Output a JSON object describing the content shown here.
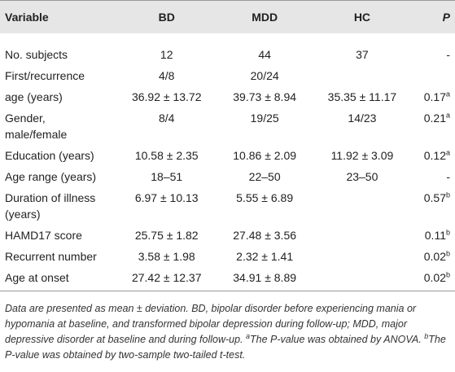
{
  "table": {
    "header": [
      "Variable",
      "BD",
      "MDD",
      "HC",
      "P"
    ],
    "rows": [
      [
        "No. subjects",
        "12",
        "44",
        "37",
        {
          "text": "-"
        }
      ],
      [
        "First/recurrence",
        "4/8",
        "20/24",
        null,
        null
      ],
      [
        "age (years)",
        "36.92 ± 13.72",
        "39.73 ± 8.94",
        "35.35 ± 11.17",
        {
          "text": "0.17",
          "sup": "a"
        }
      ],
      [
        "Gender,\nmale/female",
        "8/4",
        "19/25",
        "14/23",
        {
          "text": "0.21",
          "sup": "a"
        }
      ],
      [
        "Education (years)",
        "10.58 ± 2.35",
        "10.86 ± 2.09",
        "11.92 ± 3.09",
        {
          "text": "0.12",
          "sup": "a"
        }
      ],
      [
        "Age range (years)",
        "18–51",
        "22–50",
        "23–50",
        {
          "text": "-"
        }
      ],
      [
        "Duration of illness\n(years)",
        "6.97 ± 10.13",
        "5.55 ± 6.89",
        null,
        {
          "text": "0.57",
          "sup": "b"
        }
      ],
      [
        "HAMD17 score",
        "25.75 ± 1.82",
        "27.48 ± 3.56",
        null,
        {
          "text": "0.11",
          "sup": "b"
        }
      ],
      [
        "Recurrent number",
        "3.58 ± 1.98",
        "2.32 ± 1.41",
        null,
        {
          "text": "0.02",
          "sup": "b"
        }
      ],
      [
        "Age at onset",
        "27.42 ± 12.37",
        "34.91 ± 8.89",
        null,
        {
          "text": "0.02",
          "sup": "b"
        }
      ]
    ]
  },
  "footnote": [
    {
      "text": "Data are presented as mean ± deviation. BD, bipolar disorder before experiencing mania or hypomania at baseline, and transformed bipolar depression during follow-up; MDD, major depressive disorder at baseline and during follow-up. "
    },
    {
      "sup": "a"
    },
    {
      "text": "The P-value was obtained by ANOVA. "
    },
    {
      "sup": "b"
    },
    {
      "text": "The P-value was obtained by two-sample two-tailed t-test."
    }
  ]
}
